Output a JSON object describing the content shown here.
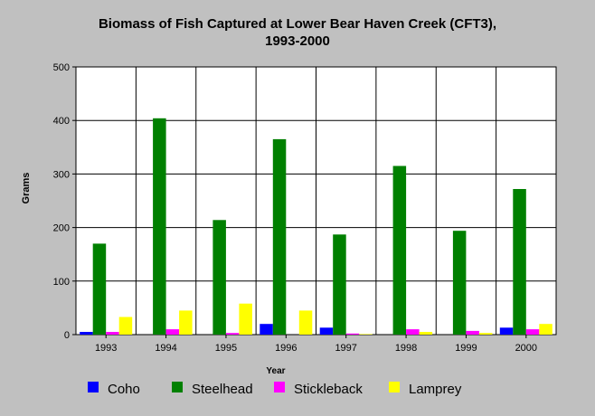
{
  "chart_data": {
    "type": "bar",
    "title": "Biomass of Fish Captured at Lower Bear Haven Creek (CFT3), 1993-2000",
    "title_lines": [
      "Biomass of Fish Captured at Lower Bear Haven Creek (CFT3),",
      "1993-2000"
    ],
    "xlabel": "Year",
    "ylabel": "Grams",
    "ylim": [
      0,
      500
    ],
    "yticks": [
      0,
      100,
      200,
      300,
      400,
      500
    ],
    "grid": true,
    "legend_position": "bottom",
    "categories": [
      "1993",
      "1994",
      "1995",
      "1996",
      "1997",
      "1998",
      "1999",
      "2000"
    ],
    "series": [
      {
        "name": "Coho",
        "color": "#0000ff",
        "values": [
          5,
          0,
          0,
          20,
          13,
          0,
          0,
          13
        ]
      },
      {
        "name": "Steelhead",
        "color": "#008000",
        "values": [
          170,
          404,
          214,
          365,
          187,
          315,
          194,
          272
        ]
      },
      {
        "name": "Stickleback",
        "color": "#ff00ff",
        "values": [
          5,
          10,
          3,
          0,
          2,
          10,
          7,
          10
        ]
      },
      {
        "name": "Lamprey",
        "color": "#ffff00",
        "values": [
          33,
          45,
          58,
          45,
          1,
          5,
          3,
          20
        ]
      }
    ]
  }
}
